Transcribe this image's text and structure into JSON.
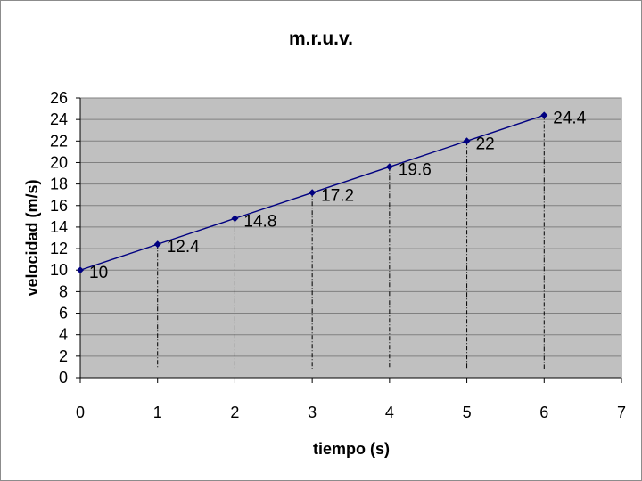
{
  "chart_data": {
    "type": "line",
    "title": "m.r.u.v.",
    "xlabel": "tiempo (s)",
    "ylabel": "velocidad (m/s)",
    "xlim": [
      0,
      7
    ],
    "ylim": [
      0,
      26
    ],
    "x_ticks": [
      "0",
      "1",
      "2",
      "3",
      "4",
      "5",
      "6",
      "7"
    ],
    "y_ticks": [
      "0",
      "2",
      "4",
      "6",
      "8",
      "10",
      "12",
      "14",
      "16",
      "18",
      "20",
      "22",
      "24",
      "26"
    ],
    "grid": "horizontal",
    "legend": "none",
    "plot_background": "#c0c0c0",
    "series": [
      {
        "color": "#000080",
        "x": [
          0,
          1,
          2,
          3,
          4,
          5,
          6
        ],
        "values": [
          10,
          12.4,
          14.8,
          17.2,
          19.6,
          22,
          24.4
        ],
        "labels": [
          "10",
          "12.4",
          "14.8",
          "17.2",
          "19.6",
          "22",
          "24.4"
        ]
      }
    ],
    "drop_lines": true
  }
}
